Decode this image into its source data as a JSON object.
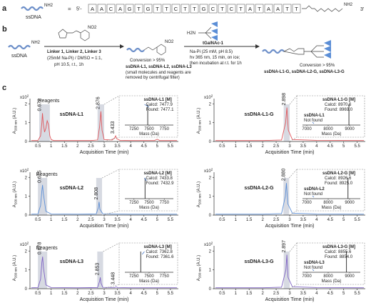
{
  "panel_a": {
    "label": "a",
    "ssdna": "ssDNA",
    "nh2": "NH2",
    "equals": "=",
    "five": "5'-",
    "sequence": [
      "A",
      "A",
      "C",
      "A",
      "G",
      "T",
      "G",
      "T",
      "T",
      "C",
      "T",
      "T",
      "G",
      "C",
      "T",
      "C",
      "T",
      "A",
      "T",
      "A",
      "A",
      "T",
      "T"
    ],
    "linker_end": "NH2",
    "three": "3'"
  },
  "panel_b": {
    "label": "b",
    "ssdna": "ssDNA",
    "nh2": "NH2",
    "no2": "NO2",
    "h2n": "H2N",
    "step1": {
      "reagent": "Linker 1, Linker 2, Linker 3",
      "conditions": [
        "(25mM Na-Pi) / DMSO = 1:1,",
        "pH 10.5, r.t., 1h"
      ]
    },
    "product1": {
      "conversion": "Conversion > 95%",
      "names": "ssDNA-L1, ssDNA-L2, ssDNA-L3",
      "notes": [
        "(small molecules and reagents are",
        "removed by centrifugal filter)"
      ]
    },
    "step2": {
      "reagent": "tGalNAc-1",
      "conditions": [
        "Na-Pi (25 mM, pH 8.5)",
        "hv 365 nm, 15 min, on ice;",
        "then incubation at r.t. for 1h"
      ]
    },
    "product2": {
      "conversion": "Conversion > 95%",
      "names": "ssDNA-L1-G, ssDNA-L2-G, ssDNA-L3-G"
    }
  },
  "panel_c": {
    "label": "c"
  },
  "chart_data": [
    {
      "type": "line",
      "title": "ssDNA-L1",
      "color": "#e0565b",
      "x": [
        0.25,
        0.5,
        0.6,
        0.65,
        0.672,
        0.7,
        0.75,
        0.8,
        0.85,
        0.9,
        0.95,
        1.0,
        1.1,
        1.5,
        2.0,
        2.5,
        2.75,
        2.83,
        2.876,
        2.92,
        3.0,
        3.3,
        3.4,
        3.433,
        3.47,
        3.6,
        4.0,
        4.9,
        5.0,
        5.1,
        5.75
      ],
      "values": [
        0.05,
        0.05,
        0.3,
        1.0,
        1.5,
        1.0,
        0.5,
        0.7,
        1.1,
        0.9,
        0.3,
        0.1,
        0.05,
        0.05,
        0.05,
        0.05,
        0.08,
        0.8,
        1.6,
        0.6,
        0.1,
        0.08,
        0.2,
        0.3,
        0.15,
        0.06,
        0.05,
        0.05,
        0.12,
        0.05,
        0.05
      ],
      "xlim": [
        0.2,
        5.8
      ],
      "xticks": [
        0.5,
        1,
        1.5,
        2,
        2.5,
        3,
        3.5,
        4,
        4.5,
        5,
        5.5
      ],
      "ylim": [
        0,
        2.2
      ],
      "yticks": [
        0,
        1,
        2
      ],
      "xlabel": "Acquisition Time (min)",
      "ylabel": {
        "main": "A",
        "sub": "260 nm",
        "unit": " (A.U.)"
      },
      "y_scale": {
        "base": "x10",
        "exp": 2
      },
      "reagents_label": "Reagents",
      "shaded": [
        [
          0.55,
          0.95
        ],
        [
          2.75,
          3.0
        ]
      ],
      "peak_labels": [
        {
          "value": 0.672,
          "label": "0.672"
        },
        {
          "value": 2.876,
          "label": "2.876"
        },
        {
          "value": 3.433,
          "label": "3.433"
        }
      ],
      "peak_label_color": "#3a9ad9",
      "inset": {
        "title": "ssDNA-L1 [M]",
        "calcd_label": "Calcd:",
        "calcd": 7477.9,
        "found_label": "Found:",
        "found": {
          "value": 7477.1,
          "label": "7477.1"
        },
        "xlim": [
          7100,
          7900
        ],
        "xticks": [
          7250,
          7500,
          7750
        ],
        "xlabel": "Mass (Da)"
      }
    },
    {
      "type": "line",
      "title": "ssDNA-L1-G",
      "color": "#e0565b",
      "x": [
        0.25,
        1.0,
        2.0,
        2.7,
        2.85,
        2.898,
        2.95,
        3.1,
        4.0,
        5.75
      ],
      "values": [
        0.05,
        0.05,
        0.05,
        0.08,
        1.0,
        1.8,
        0.6,
        0.1,
        0.06,
        0.05
      ],
      "xlim": [
        0.2,
        5.8
      ],
      "xticks": [
        0.5,
        1,
        1.5,
        2,
        2.5,
        3,
        3.5,
        4,
        4.5,
        5,
        5.5
      ],
      "ylim": [
        0,
        2.2
      ],
      "yticks": [
        0,
        1,
        2
      ],
      "xlabel": "Acquisition Time (min)",
      "ylabel": {
        "main": "A",
        "sub": "260 nm",
        "unit": " (A.U.)"
      },
      "y_scale": {
        "base": "x10",
        "exp": 2
      },
      "shaded": [
        [
          2.78,
          3.0
        ]
      ],
      "peak_labels": [
        {
          "value": 2.898,
          "label": "2.898"
        }
      ],
      "peak_label_color": "#3a9ad9",
      "inset": {
        "title": "ssDNA-L1-G [M]",
        "calcd_label": "Calcd:",
        "calcd": 8970.6,
        "found_label": "Found:",
        "found": {
          "value": 8969,
          "label": "8969.0"
        },
        "precursor": "ssDNA-L1",
        "precursor_status": "Not found",
        "xlim": [
          6800,
          9500
        ],
        "xticks": [
          7000,
          8000,
          9000
        ],
        "xlabel": "Mass (Da)"
      }
    },
    {
      "type": "line",
      "title": "ssDNA-L2",
      "color": "#5b8ed6",
      "x": [
        0.25,
        0.5,
        0.6,
        0.65,
        0.675,
        0.7,
        0.8,
        1.0,
        2.0,
        2.7,
        2.78,
        2.808,
        2.84,
        2.95,
        4.0,
        5.75
      ],
      "values": [
        0.05,
        0.06,
        0.5,
        1.3,
        1.6,
        1.2,
        0.2,
        0.06,
        0.05,
        0.06,
        0.4,
        0.7,
        0.3,
        0.07,
        0.05,
        0.05
      ],
      "xlim": [
        0.2,
        5.8
      ],
      "xticks": [
        0.5,
        1,
        1.5,
        2,
        2.5,
        3,
        3.5,
        4,
        4.5,
        5,
        5.5
      ],
      "ylim": [
        0,
        2.2
      ],
      "yticks": [
        0,
        1,
        2
      ],
      "xlabel": "Acquisition Time (min)",
      "ylabel": {
        "main": "A",
        "sub": "260 nm",
        "unit": " (A.U.)"
      },
      "y_scale": {
        "base": "x10",
        "exp": 2
      },
      "reagents_label": "Reagents",
      "shaded": [
        [
          0.5,
          0.85
        ],
        [
          2.7,
          2.92
        ]
      ],
      "peak_labels": [
        {
          "value": 0.675,
          "label": "0.675"
        },
        {
          "value": 2.808,
          "label": "2.808"
        }
      ],
      "peak_label_color": "#e0474c",
      "inset": {
        "title": "ssDNA-L2 [M]",
        "calcd_label": "Calcd:",
        "calcd": 7433.8,
        "found_label": "Found:",
        "found": {
          "value": 7432.9,
          "label": "7432.9"
        },
        "xlim": [
          7100,
          7900
        ],
        "xticks": [
          7250,
          7500,
          7750
        ],
        "xlabel": "Mass (Da)"
      }
    },
    {
      "type": "line",
      "title": "ssDNA-L2-G",
      "color": "#5b8ed6",
      "x": [
        0.25,
        1.0,
        2.0,
        2.7,
        2.84,
        2.88,
        2.93,
        3.1,
        4.0,
        5.75
      ],
      "values": [
        0.05,
        0.05,
        0.05,
        0.08,
        1.0,
        1.7,
        0.6,
        0.1,
        0.06,
        0.05
      ],
      "xlim": [
        0.2,
        5.8
      ],
      "xticks": [
        0.5,
        1,
        1.5,
        2,
        2.5,
        3,
        3.5,
        4,
        4.5,
        5,
        5.5
      ],
      "ylim": [
        0,
        2.2
      ],
      "yticks": [
        0,
        1,
        2
      ],
      "xlabel": "Acquisition Time (min)",
      "ylabel": {
        "main": "A",
        "sub": "260 nm",
        "unit": " (A.U.)"
      },
      "y_scale": {
        "base": "x10",
        "exp": 2
      },
      "shaded": [
        [
          2.77,
          2.98
        ]
      ],
      "peak_labels": [
        {
          "value": 2.88,
          "label": "2.880"
        }
      ],
      "peak_label_color": "#e0474c",
      "inset": {
        "title": "ssDNA-L2-G [M]",
        "calcd_label": "Calcd:",
        "calcd": 8926.6,
        "found_label": "Found:",
        "found": {
          "value": 8925,
          "label": "8925.0"
        },
        "precursor": "ssDNA-L2",
        "precursor_status": "Not found",
        "xlim": [
          6800,
          9500
        ],
        "xticks": [
          7000,
          8000,
          9000
        ],
        "xlabel": "Mass (Da)"
      }
    },
    {
      "type": "line",
      "title": "ssDNA-L3",
      "color": "#7e62c4",
      "x": [
        0.25,
        0.5,
        0.6,
        0.65,
        0.678,
        0.71,
        0.8,
        1.0,
        2.0,
        2.75,
        2.83,
        2.853,
        2.88,
        2.95,
        3.4,
        3.448,
        3.5,
        4.0,
        5.75
      ],
      "values": [
        0.05,
        0.06,
        0.5,
        1.4,
        1.7,
        1.1,
        0.2,
        0.06,
        0.05,
        0.06,
        0.4,
        0.6,
        0.3,
        0.07,
        0.06,
        0.1,
        0.06,
        0.05,
        0.05
      ],
      "xlim": [
        0.2,
        5.8
      ],
      "xticks": [
        0.5,
        1,
        1.5,
        2,
        2.5,
        3,
        3.5,
        4,
        4.5,
        5,
        5.5
      ],
      "ylim": [
        0,
        2.2
      ],
      "yticks": [
        0,
        1,
        2
      ],
      "xlabel": "Acquisition Time (min)",
      "ylabel": {
        "main": "A",
        "sub": "260 nm",
        "unit": " (A.U.)"
      },
      "y_scale": {
        "base": "x10",
        "exp": 2
      },
      "reagents_label": "Reagents",
      "shaded": [
        [
          0.5,
          0.85
        ],
        [
          2.74,
          2.96
        ]
      ],
      "peak_labels": [
        {
          "value": 0.678,
          "label": "0.678"
        },
        {
          "value": 2.853,
          "label": "2.853"
        },
        {
          "value": 3.448,
          "label": "3.448"
        }
      ],
      "peak_label_color": "#e0474c",
      "inset": {
        "title": "ssDNA-L3 [M]",
        "calcd_label": "Calcd:",
        "calcd": 7362.8,
        "found_label": "Found:",
        "found": {
          "value": 7361.6,
          "label": "7361.6"
        },
        "xlim": [
          7100,
          7900
        ],
        "xticks": [
          7250,
          7500,
          7750
        ],
        "xlabel": "Mass (Da)"
      }
    },
    {
      "type": "line",
      "title": "ssDNA-L3-G",
      "color": "#7e62c4",
      "x": [
        0.25,
        1.0,
        2.0,
        2.7,
        2.86,
        2.897,
        2.94,
        3.1,
        4.0,
        5.75
      ],
      "values": [
        0.05,
        0.05,
        0.05,
        0.08,
        1.0,
        1.8,
        0.6,
        0.1,
        0.06,
        0.05
      ],
      "xlim": [
        0.2,
        5.8
      ],
      "xticks": [
        0.5,
        1,
        1.5,
        2,
        2.5,
        3,
        3.5,
        4,
        4.5,
        5,
        5.5
      ],
      "ylim": [
        0,
        2.2
      ],
      "yticks": [
        0,
        1,
        2
      ],
      "xlabel": "Acquisition Time (min)",
      "ylabel": {
        "main": "A",
        "sub": "260 nm",
        "unit": " (A.U.)"
      },
      "y_scale": {
        "base": "x10",
        "exp": 2
      },
      "shaded": [
        [
          2.78,
          3.0
        ]
      ],
      "peak_labels": [
        {
          "value": 2.897,
          "label": "2.897"
        }
      ],
      "peak_label_color": "#e0474c",
      "inset": {
        "title": "ssDNA-L3-G [M]",
        "calcd_label": "Calcd:",
        "calcd": 8855.6,
        "found_label": "Found:",
        "found": {
          "value": 8854,
          "label": "8854.0"
        },
        "precursor": "ssDNA-L3",
        "precursor_status": "Not found",
        "xlim": [
          6800,
          9500
        ],
        "xticks": [
          7000,
          8000,
          9000
        ],
        "xlabel": "Mass (Da)"
      }
    }
  ]
}
